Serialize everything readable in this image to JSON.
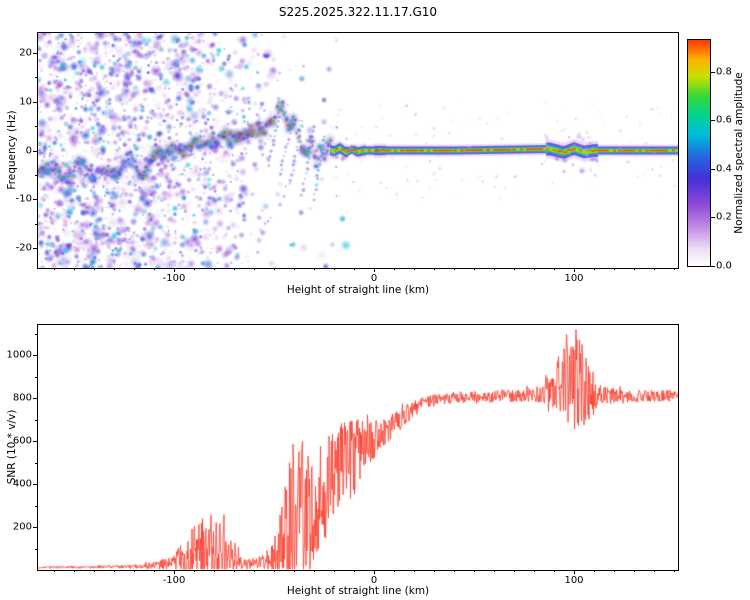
{
  "title": "S225.2025.322.11.17.G10",
  "chart_data": [
    {
      "type": "heatmap",
      "title": "S225.2025.322.11.17.G10",
      "xlabel": "Height of straight line (km)",
      "ylabel": "Frequency (Hz)",
      "xlim": [
        -168,
        152
      ],
      "ylim": [
        -24,
        24
      ],
      "xticks": [
        -100,
        0,
        100
      ],
      "yticks": [
        20,
        10,
        0,
        -10,
        -20
      ],
      "x_minor_step": 10,
      "y_minor_step": 5,
      "colorbar": {
        "label": "Normalized spectral amplitude",
        "lim": [
          0,
          0.93
        ],
        "ticks": [
          0.0,
          0.2,
          0.4,
          0.6,
          0.8
        ],
        "stops": [
          [
            0,
            "#ffffff"
          ],
          [
            0.07,
            "#ecdcf4"
          ],
          [
            0.16,
            "#c08ae4"
          ],
          [
            0.26,
            "#8a46d8"
          ],
          [
            0.36,
            "#4430d8"
          ],
          [
            0.46,
            "#2070e0"
          ],
          [
            0.54,
            "#00bcd8"
          ],
          [
            0.62,
            "#00d490"
          ],
          [
            0.7,
            "#38d838"
          ],
          [
            0.78,
            "#c6e000"
          ],
          [
            0.85,
            "#ffb400"
          ],
          [
            0.92,
            "#ff4800"
          ],
          [
            1,
            "#e4003c"
          ]
        ]
      },
      "signal_trace": [
        [
          -168,
          -3
        ],
        [
          -155,
          -5
        ],
        [
          -145,
          -3
        ],
        [
          -138,
          -5
        ],
        [
          -130,
          -4
        ],
        [
          -122,
          -2
        ],
        [
          -115,
          -4
        ],
        [
          -108,
          -1
        ],
        [
          -102,
          1
        ],
        [
          -96,
          -1
        ],
        [
          -90,
          2
        ],
        [
          -84,
          1
        ],
        [
          -78,
          3
        ],
        [
          -72,
          2
        ],
        [
          -66,
          4
        ],
        [
          -60,
          3
        ],
        [
          -54,
          5
        ],
        [
          -49,
          7
        ],
        [
          -46,
          9
        ],
        [
          -43,
          5
        ],
        [
          -40,
          7
        ],
        [
          -37,
          2
        ],
        [
          -34,
          -2
        ],
        [
          -31,
          3
        ],
        [
          -29,
          -3
        ],
        [
          -27,
          1
        ],
        [
          -25,
          -1
        ],
        [
          -23,
          0.3
        ],
        [
          -20,
          -0.2
        ],
        [
          -17,
          0.5
        ],
        [
          -14,
          -0.4
        ],
        [
          -11,
          0.2
        ],
        [
          -8,
          -0.3
        ],
        [
          -5,
          0
        ],
        [
          0,
          0
        ],
        [
          40,
          0
        ],
        [
          88,
          0.3
        ],
        [
          95,
          -0.4
        ],
        [
          100,
          0.4
        ],
        [
          105,
          -0.3
        ],
        [
          110,
          0
        ],
        [
          152,
          0
        ]
      ],
      "streaks": [
        [
          -53,
          -3,
          8,
          13
        ],
        [
          -47,
          -5,
          7,
          12
        ],
        [
          -42,
          -7,
          6,
          13
        ],
        [
          -36,
          -9,
          6,
          14
        ],
        [
          -30,
          -10,
          5,
          13
        ]
      ],
      "disturb_zones": [
        [
          -22,
          -13,
          0.5
        ],
        [
          -10,
          -4,
          0.3
        ],
        [
          0,
          6,
          0.25
        ],
        [
          86,
          112,
          1
        ]
      ],
      "noise": {
        "x_end": -14,
        "blob_count": 3400
      }
    },
    {
      "type": "line",
      "xlabel": "Height of straight line (km)",
      "ylabel": "SNR (10 * v/v)",
      "xlim": [
        -168,
        152
      ],
      "ylim": [
        0,
        1140
      ],
      "xticks": [
        -100,
        0,
        100
      ],
      "yticks": [
        200,
        400,
        600,
        800,
        1000
      ],
      "x_minor_step": 10,
      "y_minor_step": 100,
      "series": [
        {
          "name": "SNR",
          "color": "#f93b2b",
          "envelope": [
            [
              -168,
              12,
              8
            ],
            [
              -140,
              14,
              10
            ],
            [
              -120,
              16,
              14
            ],
            [
              -108,
              22,
              30
            ],
            [
              -100,
              38,
              70
            ],
            [
              -95,
              60,
              150
            ],
            [
              -88,
              80,
              240
            ],
            [
              -82,
              100,
              280
            ],
            [
              -76,
              85,
              240
            ],
            [
              -70,
              55,
              140
            ],
            [
              -66,
              38,
              70
            ],
            [
              -60,
              30,
              40
            ],
            [
              -55,
              38,
              70
            ],
            [
              -50,
              60,
              130
            ],
            [
              -46,
              95,
              380
            ],
            [
              -43,
              170,
              520
            ],
            [
              -40,
              240,
              620
            ],
            [
              -37,
              320,
              640
            ],
            [
              -34,
              290,
              520
            ],
            [
              -31,
              260,
              430
            ],
            [
              -28,
              340,
              480
            ],
            [
              -25,
              310,
              430
            ],
            [
              -22,
              390,
              420
            ],
            [
              -19,
              440,
              380
            ],
            [
              -16,
              490,
              330
            ],
            [
              -13,
              530,
              300
            ],
            [
              -10,
              490,
              340
            ],
            [
              -7,
              570,
              260
            ],
            [
              -4,
              610,
              190
            ],
            [
              -1,
              600,
              210
            ],
            [
              2,
              630,
              140
            ],
            [
              5,
              650,
              120
            ],
            [
              8,
              665,
              100
            ],
            [
              12,
              695,
              90
            ],
            [
              16,
              725,
              80
            ],
            [
              20,
              755,
              70
            ],
            [
              25,
              778,
              55
            ],
            [
              30,
              792,
              50
            ],
            [
              40,
              802,
              45
            ],
            [
              55,
              806,
              45
            ],
            [
              70,
              812,
              50
            ],
            [
              80,
              814,
              55
            ],
            [
              86,
              822,
              100
            ],
            [
              90,
              845,
              180
            ],
            [
              94,
              885,
              290
            ],
            [
              98,
              905,
              380
            ],
            [
              102,
              875,
              400
            ],
            [
              106,
              845,
              290
            ],
            [
              110,
              822,
              160
            ],
            [
              115,
              812,
              70
            ],
            [
              125,
              806,
              50
            ],
            [
              140,
              810,
              45
            ],
            [
              152,
              812,
              45
            ]
          ]
        }
      ]
    }
  ]
}
